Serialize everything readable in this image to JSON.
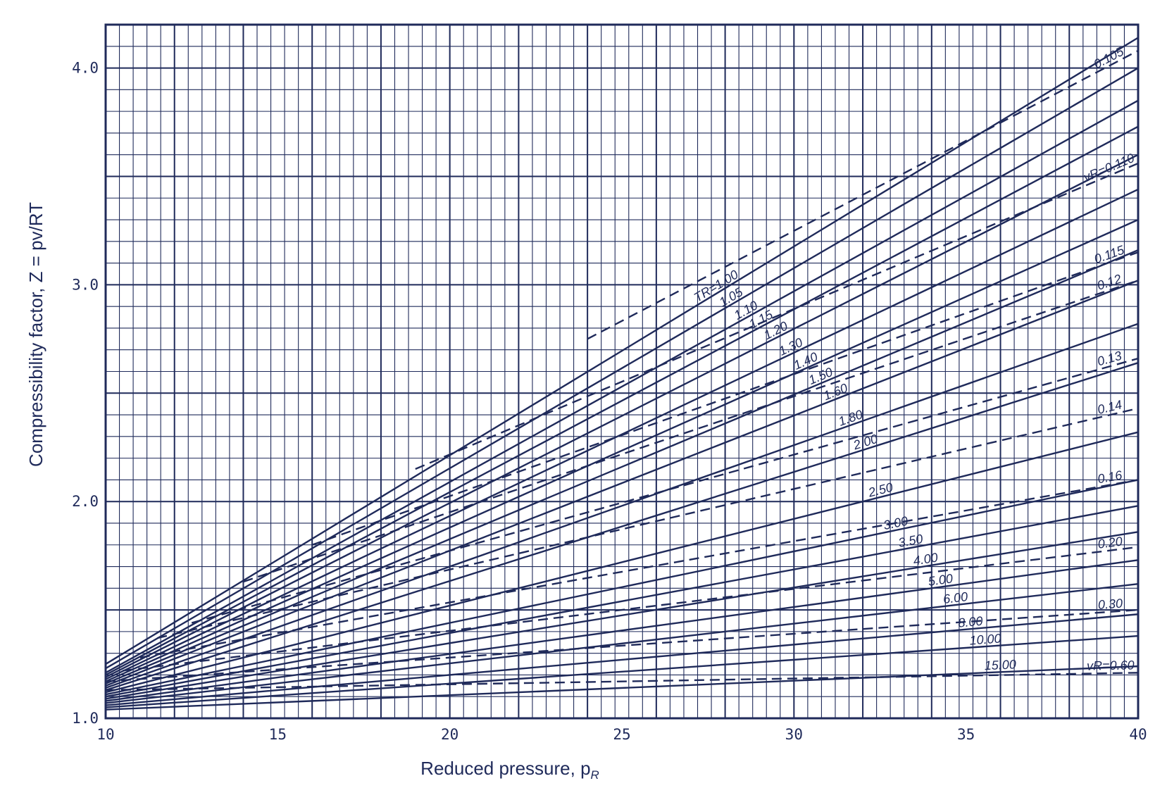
{
  "chart_data": {
    "type": "line",
    "xlabel": "Reduced pressure, p",
    "xlabel_sub": "R",
    "ylabel": "Compressibility factor, Z = pv/RT",
    "xlim": [
      10,
      40
    ],
    "ylim": [
      1.0,
      4.2
    ],
    "x_ticks": [
      "10",
      "15",
      "20",
      "25",
      "30",
      "35",
      "40"
    ],
    "y_ticks": [
      "1.0",
      "2.0",
      "3.0",
      "4.0"
    ],
    "grid": true,
    "line_color": "#1f2a5a",
    "series_solid": [
      {
        "name": "TR=1.00",
        "label": "TR=1.00",
        "x": [
          10,
          40
        ],
        "y": [
          1.25,
          4.14
        ]
      },
      {
        "name": "1.05",
        "label": "1.05",
        "x": [
          10,
          40
        ],
        "y": [
          1.23,
          4.0
        ]
      },
      {
        "name": "1.10",
        "label": "1.10",
        "x": [
          10,
          40
        ],
        "y": [
          1.21,
          3.85
        ]
      },
      {
        "name": "1.15",
        "label": "1.15",
        "x": [
          10,
          40
        ],
        "y": [
          1.2,
          3.73
        ]
      },
      {
        "name": "1.20",
        "label": "1.20",
        "x": [
          10,
          40
        ],
        "y": [
          1.19,
          3.6
        ]
      },
      {
        "name": "1.30",
        "label": "1.30",
        "x": [
          10,
          40
        ],
        "y": [
          1.18,
          3.44
        ]
      },
      {
        "name": "1.40",
        "label": "1.40",
        "x": [
          10,
          40
        ],
        "y": [
          1.17,
          3.3
        ]
      },
      {
        "name": "1.50",
        "label": "1.50",
        "x": [
          10,
          40
        ],
        "y": [
          1.16,
          3.16
        ]
      },
      {
        "name": "1.60",
        "label": "1.60",
        "x": [
          10,
          40
        ],
        "y": [
          1.15,
          3.02
        ]
      },
      {
        "name": "1.80",
        "label": "1.80",
        "x": [
          10,
          40
        ],
        "y": [
          1.14,
          2.82
        ]
      },
      {
        "name": "2.00",
        "label": "2.00",
        "x": [
          10,
          40
        ],
        "y": [
          1.13,
          2.64
        ]
      },
      {
        "name": "2.50",
        "label": "2.50",
        "x": [
          10,
          40
        ],
        "y": [
          1.12,
          2.32
        ]
      },
      {
        "name": "3.00",
        "label": "3.00",
        "x": [
          10,
          40
        ],
        "y": [
          1.11,
          2.1
        ]
      },
      {
        "name": "3.50",
        "label": "3.50",
        "x": [
          10,
          40
        ],
        "y": [
          1.1,
          1.98
        ]
      },
      {
        "name": "4.00",
        "label": "4.00",
        "x": [
          10,
          40
        ],
        "y": [
          1.09,
          1.86
        ]
      },
      {
        "name": "5.00",
        "label": "5.00",
        "x": [
          10,
          40
        ],
        "y": [
          1.08,
          1.73
        ]
      },
      {
        "name": "6.00",
        "label": "6.00",
        "x": [
          10,
          40
        ],
        "y": [
          1.07,
          1.62
        ]
      },
      {
        "name": "8.00",
        "label": "8.00",
        "x": [
          10,
          40
        ],
        "y": [
          1.06,
          1.48
        ]
      },
      {
        "name": "10.00",
        "label": "10.00",
        "x": [
          10,
          40
        ],
        "y": [
          1.05,
          1.38
        ]
      },
      {
        "name": "15.00",
        "label": "15.00",
        "x": [
          10,
          40
        ],
        "y": [
          1.04,
          1.24
        ]
      }
    ],
    "series_dashed": [
      {
        "name": "0.105",
        "label": "0.105",
        "x": [
          24,
          40
        ],
        "y": [
          2.75,
          4.08
        ]
      },
      {
        "name": "vR=0.110",
        "label": "vR=0.110",
        "x": [
          19,
          40
        ],
        "y": [
          2.15,
          3.56
        ]
      },
      {
        "name": "0.115",
        "label": "0.115",
        "x": [
          16,
          40
        ],
        "y": [
          1.8,
          3.15
        ]
      },
      {
        "name": "0.12",
        "label": "0.12",
        "x": [
          14,
          40
        ],
        "y": [
          1.63,
          3.02
        ]
      },
      {
        "name": "0.13",
        "label": "0.13",
        "x": [
          12.5,
          40
        ],
        "y": [
          1.44,
          2.66
        ]
      },
      {
        "name": "0.14",
        "label": "0.14",
        "x": [
          11.5,
          40
        ],
        "y": [
          1.37,
          2.43
        ]
      },
      {
        "name": "0.16",
        "label": "0.16",
        "x": [
          11,
          40
        ],
        "y": [
          1.28,
          2.1
        ]
      },
      {
        "name": "0.20",
        "label": "0.20",
        "x": [
          10.5,
          40
        ],
        "y": [
          1.22,
          1.79
        ]
      },
      {
        "name": "0.30",
        "label": "0.30",
        "x": [
          10,
          40
        ],
        "y": [
          1.17,
          1.5
        ]
      },
      {
        "name": "vR=0.60",
        "label": "vR=0.60",
        "x": [
          10,
          40
        ],
        "y": [
          1.13,
          1.21
        ]
      }
    ]
  }
}
